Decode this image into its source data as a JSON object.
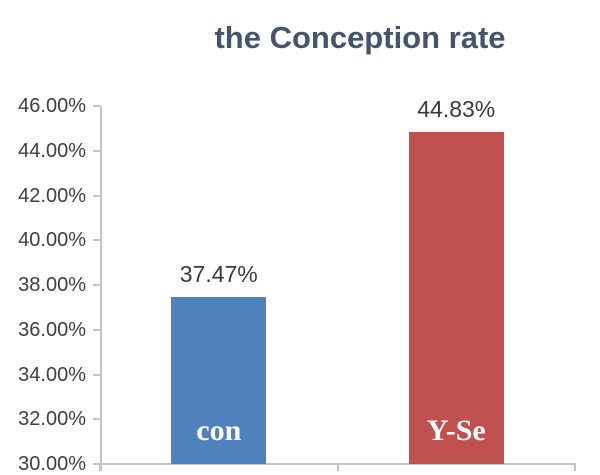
{
  "chart_data": {
    "type": "bar",
    "title": "the Conception rate",
    "categories": [
      "con",
      "Y-Se"
    ],
    "values": [
      37.47,
      44.83
    ],
    "value_labels": [
      "37.47%",
      "44.83%"
    ],
    "bar_colors": [
      "#4F81BD",
      "#C0504D"
    ],
    "xlabel": "",
    "ylabel": "",
    "ylim": [
      30,
      46
    ],
    "ytick_step": 2,
    "ytick_labels": [
      "46.00%",
      "44.00%",
      "42.00%",
      "40.00%",
      "38.00%",
      "36.00%",
      "34.00%",
      "32.00%",
      "30.00%"
    ],
    "ytick_values": [
      46,
      44,
      42,
      40,
      38,
      36,
      34,
      32,
      30
    ],
    "grid": false,
    "legend_position": "none",
    "colors": {
      "title": "#44546A",
      "axis_line": "#C4C4C4",
      "tick_label": "#3F3F3F",
      "value_label": "#3A3A3A",
      "category_label": "#FFFFFF",
      "background": "#FFFFFF"
    }
  }
}
